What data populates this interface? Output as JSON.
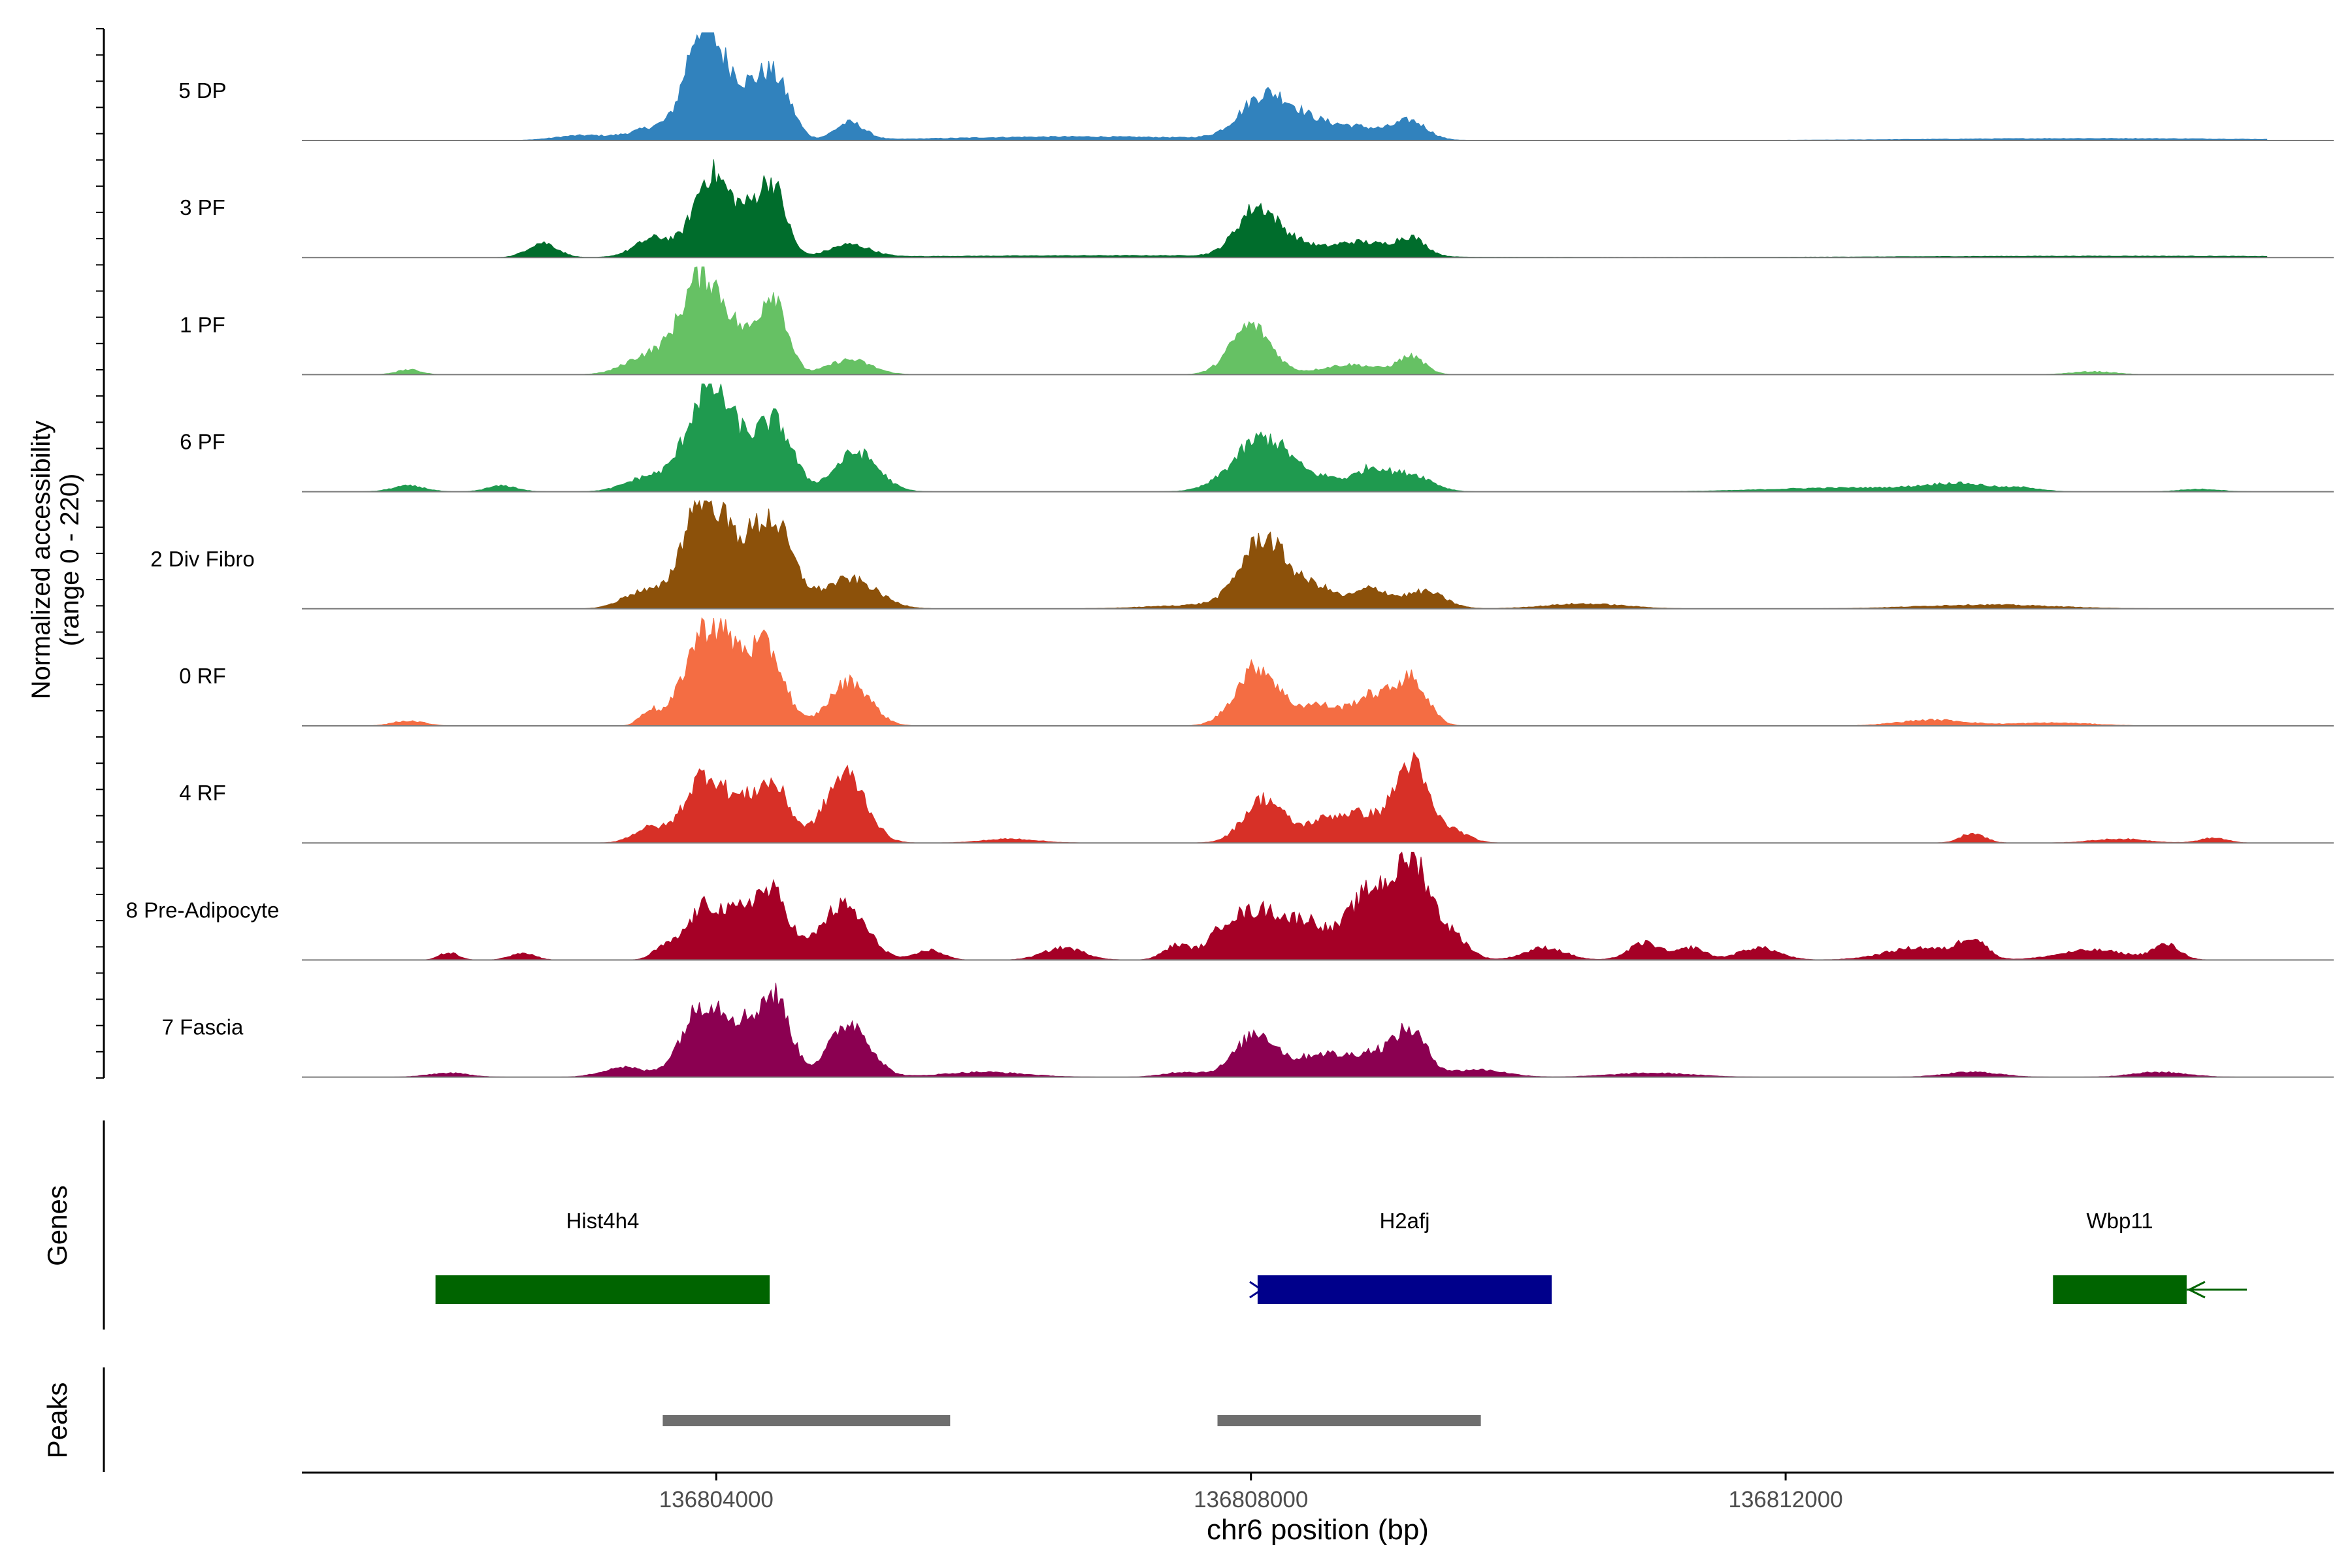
{
  "chart_data": {
    "type": "area",
    "title": "",
    "ylabel_line1": "Normalized accessibility",
    "ylabel_line2": "(range 0 - 220)",
    "ylim": [
      0,
      220
    ],
    "xlabel": "chr6 position (bp)",
    "xlim": [
      136800900,
      136816100
    ],
    "xticks": [
      136804000,
      136808000,
      136812000
    ],
    "xtick_labels": [
      "136804000",
      "136808000",
      "136812000"
    ],
    "genes_label": "Genes",
    "peaks_label": "Peaks",
    "tracks": [
      {
        "name": "5 DP",
        "color": "#3182bd",
        "peaks": [
          [
            136803000,
            10,
            200
          ],
          [
            136803600,
            30,
            200
          ],
          [
            136803880,
            200,
            110
          ],
          [
            136804100,
            120,
            130
          ],
          [
            136804400,
            130,
            120
          ],
          [
            136804550,
            20,
            80
          ],
          [
            136805000,
            35,
            110
          ],
          [
            136806500,
            4,
            800
          ],
          [
            136808100,
            85,
            180
          ],
          [
            136808400,
            30,
            180
          ],
          [
            136808800,
            25,
            220
          ],
          [
            136809200,
            35,
            120
          ],
          [
            136807200,
            4,
            1200
          ],
          [
            136814300,
            4,
            1200
          ]
        ]
      },
      {
        "name": "3 PF",
        "color": "#006d2c",
        "peaks": [
          [
            136802700,
            30,
            110
          ],
          [
            136803550,
            40,
            150
          ],
          [
            136803950,
            160,
            120
          ],
          [
            136804200,
            80,
            120
          ],
          [
            136804420,
            140,
            100
          ],
          [
            136805000,
            25,
            150
          ],
          [
            136808050,
            100,
            150
          ],
          [
            136808350,
            20,
            120
          ],
          [
            136808800,
            30,
            220
          ],
          [
            136809200,
            35,
            110
          ],
          [
            136807100,
            4,
            1500
          ],
          [
            136814500,
            3,
            1500
          ]
        ]
      },
      {
        "name": "1 PF",
        "color": "#66c164",
        "peaks": [
          [
            136801700,
            10,
            90
          ],
          [
            136803500,
            40,
            170
          ],
          [
            136803880,
            180,
            150
          ],
          [
            136804150,
            70,
            170
          ],
          [
            136804430,
            150,
            100
          ],
          [
            136805000,
            30,
            160
          ],
          [
            136808000,
            100,
            150
          ],
          [
            136808750,
            20,
            220
          ],
          [
            136809200,
            35,
            100
          ],
          [
            136814300,
            6,
            160
          ]
        ]
      },
      {
        "name": "6 PF",
        "color": "#1f9a4f",
        "peaks": [
          [
            136801700,
            12,
            120
          ],
          [
            136802400,
            12,
            110
          ],
          [
            136803500,
            30,
            170
          ],
          [
            136803920,
            170,
            150
          ],
          [
            136804170,
            90,
            200
          ],
          [
            136804460,
            110,
            120
          ],
          [
            136805050,
            80,
            160
          ],
          [
            136808100,
            110,
            220
          ],
          [
            136808600,
            20,
            120
          ],
          [
            136808900,
            45,
            120
          ],
          [
            136809200,
            35,
            150
          ],
          [
            136812500,
            8,
            600
          ],
          [
            136813300,
            14,
            250
          ],
          [
            136813800,
            6,
            120
          ],
          [
            136815100,
            5,
            150
          ]
        ]
      },
      {
        "name": "2 Div Fibro",
        "color": "#8c510a",
        "peaks": [
          [
            136803450,
            35,
            150
          ],
          [
            136803880,
            190,
            140
          ],
          [
            136804150,
            110,
            200
          ],
          [
            136804440,
            140,
            140
          ],
          [
            136805000,
            60,
            200
          ],
          [
            136807700,
            8,
            400
          ],
          [
            136808100,
            140,
            170
          ],
          [
            136808500,
            40,
            140
          ],
          [
            136808900,
            40,
            130
          ],
          [
            136809300,
            35,
            150
          ],
          [
            136810500,
            10,
            300
          ],
          [
            136813500,
            8,
            500
          ]
        ]
      },
      {
        "name": "0 RF",
        "color": "#f46d43",
        "peaks": [
          [
            136801700,
            10,
            120
          ],
          [
            136803500,
            30,
            70
          ],
          [
            136803900,
            170,
            150
          ],
          [
            136804150,
            110,
            150
          ],
          [
            136804400,
            130,
            120
          ],
          [
            136805000,
            90,
            150
          ],
          [
            136808050,
            120,
            160
          ],
          [
            136808500,
            40,
            140
          ],
          [
            136808900,
            60,
            150
          ],
          [
            136809200,
            90,
            120
          ],
          [
            136813100,
            12,
            250
          ],
          [
            136814000,
            6,
            300
          ]
        ]
      },
      {
        "name": "4 RF",
        "color": "#d73027",
        "peaks": [
          [
            136803500,
            30,
            120
          ],
          [
            136803900,
            130,
            140
          ],
          [
            136804200,
            70,
            150
          ],
          [
            136804440,
            100,
            120
          ],
          [
            136804970,
            140,
            150
          ],
          [
            136806200,
            8,
            200
          ],
          [
            136808100,
            90,
            150
          ],
          [
            136808500,
            25,
            120
          ],
          [
            136808800,
            60,
            200
          ],
          [
            136809200,
            155,
            120
          ],
          [
            136809500,
            25,
            120
          ],
          [
            136813400,
            20,
            90
          ],
          [
            136814500,
            8,
            200
          ],
          [
            136815200,
            10,
            100
          ]
        ]
      },
      {
        "name": "8 Pre-Adipocyte",
        "color": "#a50026",
        "peaks": [
          [
            136802000,
            15,
            70
          ],
          [
            136802550,
            15,
            90
          ],
          [
            136803600,
            20,
            80
          ],
          [
            136803930,
            110,
            150
          ],
          [
            136804250,
            90,
            120
          ],
          [
            136804450,
            110,
            110
          ],
          [
            136804950,
            110,
            170
          ],
          [
            136805600,
            20,
            100
          ],
          [
            136806600,
            25,
            150
          ],
          [
            136807450,
            30,
            100
          ],
          [
            136807800,
            45,
            120
          ],
          [
            136808100,
            100,
            200
          ],
          [
            136808450,
            55,
            120
          ],
          [
            136808800,
            80,
            150
          ],
          [
            136809000,
            100,
            150
          ],
          [
            136809230,
            170,
            120
          ],
          [
            136809500,
            50,
            120
          ],
          [
            136810200,
            25,
            150
          ],
          [
            136810950,
            35,
            120
          ],
          [
            136811300,
            25,
            100
          ],
          [
            136811800,
            25,
            150
          ],
          [
            136813000,
            25,
            250
          ],
          [
            136813400,
            40,
            100
          ],
          [
            136814300,
            20,
            250
          ],
          [
            136814850,
            30,
            100
          ]
        ]
      },
      {
        "name": "7 Fascia",
        "color": "#8b0051",
        "peaks": [
          [
            136802000,
            8,
            150
          ],
          [
            136803300,
            20,
            150
          ],
          [
            136803880,
            120,
            150
          ],
          [
            136804200,
            100,
            200
          ],
          [
            136804450,
            120,
            110
          ],
          [
            136805000,
            110,
            150
          ],
          [
            136806000,
            10,
            300
          ],
          [
            136807500,
            10,
            150
          ],
          [
            136808050,
            90,
            160
          ],
          [
            136808500,
            40,
            140
          ],
          [
            136808900,
            50,
            200
          ],
          [
            136809200,
            80,
            120
          ],
          [
            136809700,
            15,
            200
          ],
          [
            136811000,
            8,
            300
          ],
          [
            136813400,
            10,
            200
          ],
          [
            136814800,
            10,
            200
          ]
        ]
      }
    ],
    "genes": [
      {
        "name": "Hist4h4",
        "start": 136801900,
        "end": 136804400,
        "color": "#006400",
        "strand": "none"
      },
      {
        "name": "H2afj",
        "start": 136808050,
        "end": 136810250,
        "color": "#00008b",
        "strand": "+"
      },
      {
        "name": "Wbp11",
        "start": 136814000,
        "end": 136815000,
        "color": "#006400",
        "strand": "-",
        "arrow_to": 136815450
      }
    ],
    "peaks_regions": [
      {
        "start": 136803600,
        "end": 136805750
      },
      {
        "start": 136807750,
        "end": 136809720
      }
    ]
  }
}
